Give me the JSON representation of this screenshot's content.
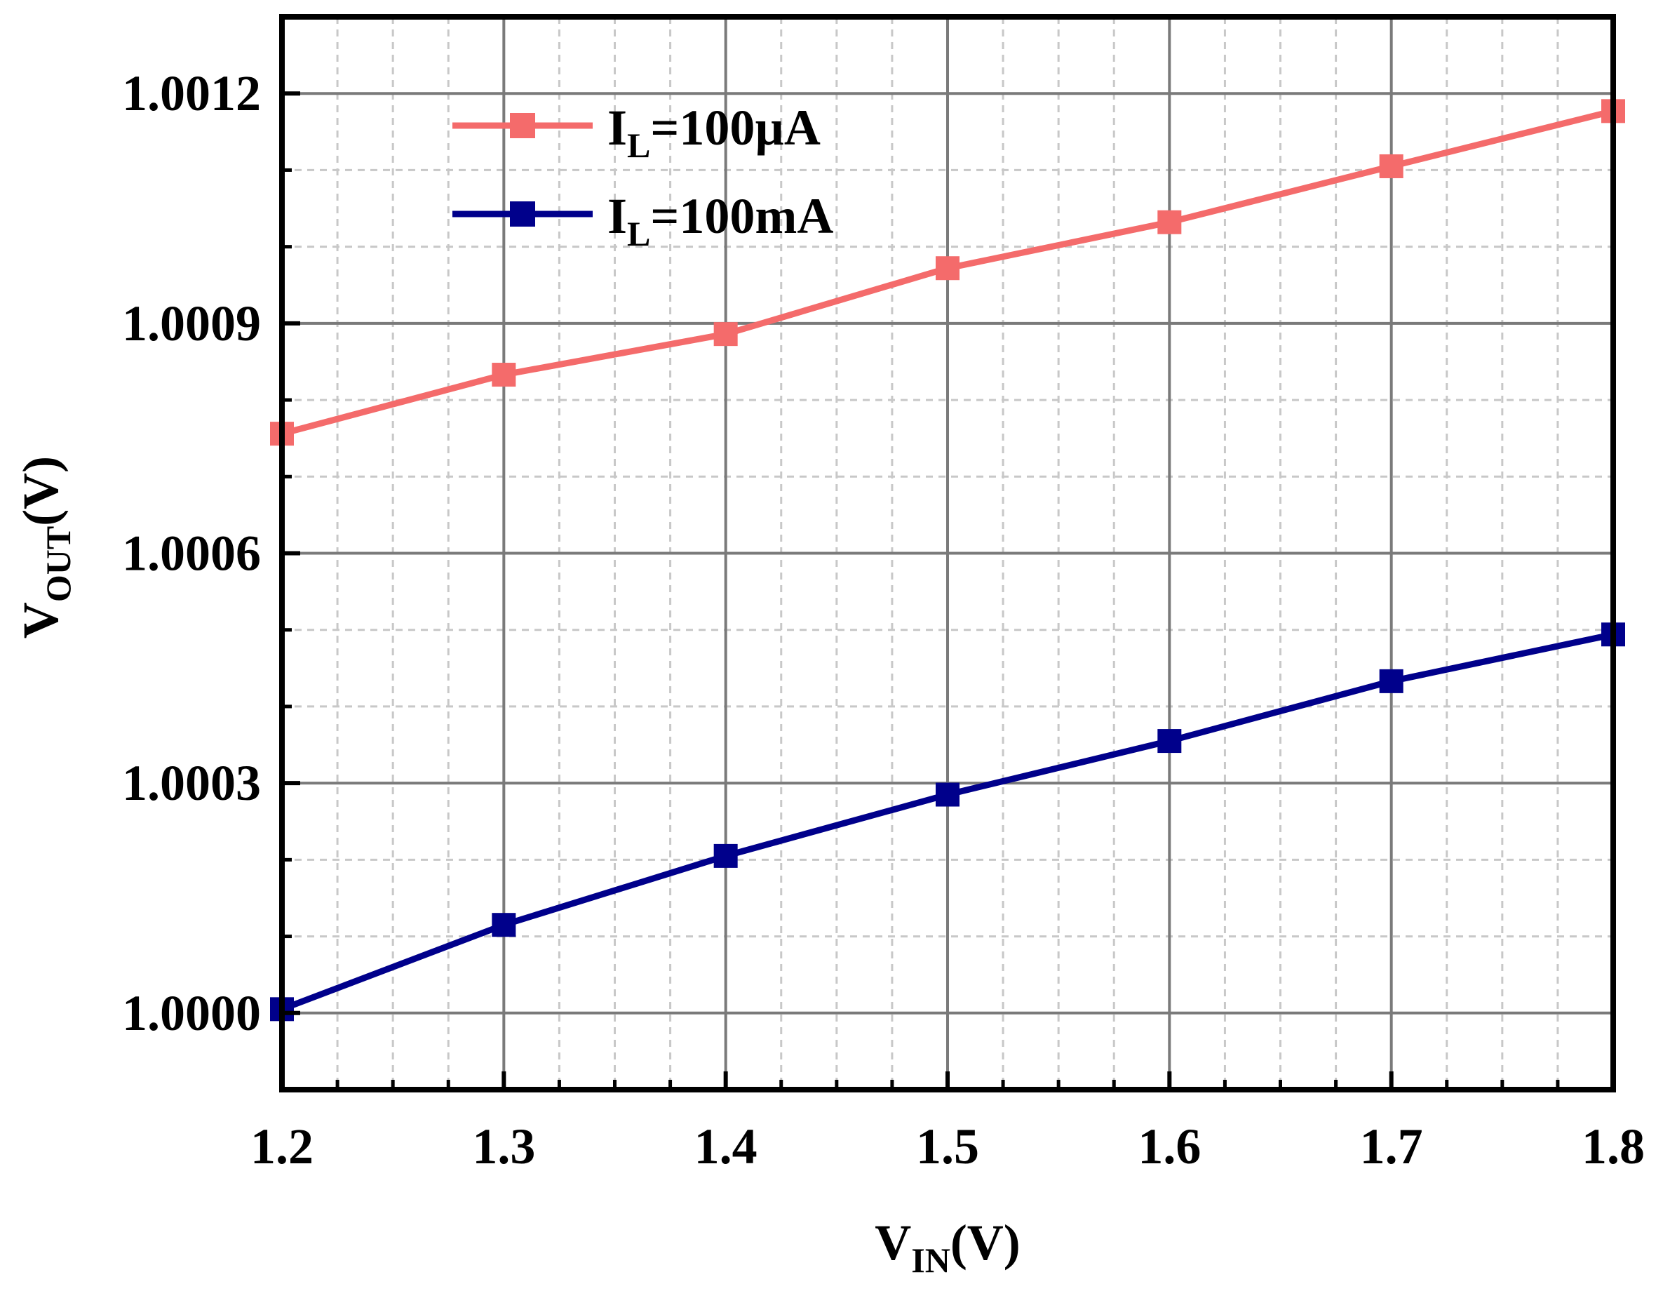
{
  "chart_data": {
    "type": "line",
    "title": "",
    "xlabel": {
      "main": "V",
      "sub": "IN",
      "unit": "(V)"
    },
    "ylabel": {
      "main": "V",
      "sub": "OUT",
      "unit": "(V)"
    },
    "xlim": [
      1.2,
      1.8
    ],
    "ylim": [
      0.9999,
      1.0013
    ],
    "x": [
      1.2,
      1.3,
      1.4,
      1.5,
      1.6,
      1.7,
      1.8
    ],
    "x_ticks": [
      1.2,
      1.3,
      1.4,
      1.5,
      1.6,
      1.7,
      1.8
    ],
    "x_tick_labels": [
      "1.2",
      "1.3",
      "1.4",
      "1.5",
      "1.6",
      "1.7",
      "1.8"
    ],
    "y_ticks": [
      1.0,
      1.0003,
      1.0006,
      1.0009,
      1.0012
    ],
    "y_tick_labels": [
      "1.0000",
      "1.0003",
      "1.0006",
      "1.0009",
      "1.0012"
    ],
    "grid": true,
    "legend_position": "top-left",
    "series": [
      {
        "name": "IL=100µA",
        "label_main": "I",
        "label_sub": "L",
        "label_rest": "=100µA",
        "color": "#F46B6B",
        "marker": "square",
        "values": [
          1.000756,
          1.000833,
          1.000886,
          1.000972,
          1.001032,
          1.001105,
          1.001177
        ]
      },
      {
        "name": "IL=100mA",
        "label_main": "I",
        "label_sub": "L",
        "label_rest": "=100mA",
        "color": "#00008B",
        "marker": "square",
        "values": [
          1.000005,
          1.000115,
          1.000205,
          1.000285,
          1.000355,
          1.000433,
          1.000494
        ]
      }
    ]
  }
}
